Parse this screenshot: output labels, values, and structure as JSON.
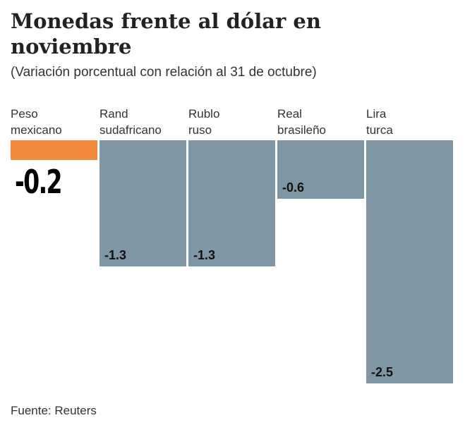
{
  "chart_data": {
    "type": "bar",
    "title": "Monedas frente al dólar en noviembre",
    "subtitle": "(Variación porcentual con relación al 31 de octubre)",
    "categories": [
      "Peso mexicano",
      "Rand sudafricano",
      "Rublo ruso",
      "Real brasileño",
      "Lira turca"
    ],
    "values": [
      -0.2,
      -1.3,
      -1.3,
      -0.6,
      -2.5
    ],
    "colors": [
      "#f28a3e",
      "#7f97a5",
      "#7f97a5",
      "#7f97a5",
      "#7f97a5"
    ],
    "source": "Fuente: Reuters"
  }
}
